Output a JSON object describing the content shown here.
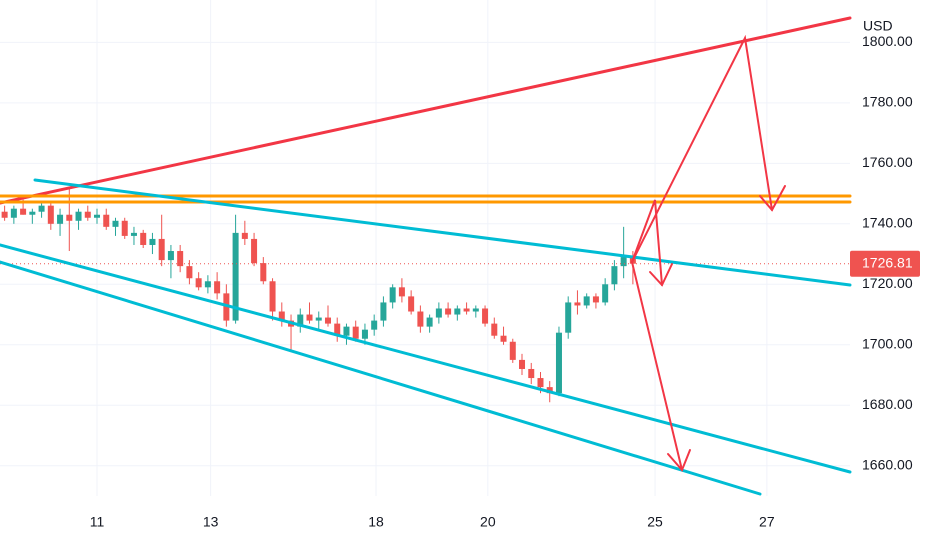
{
  "chart_data": {
    "type": "candlestick",
    "currency": "USD",
    "open": [
      1744,
      1742,
      1745,
      1743,
      1744,
      1746,
      1740,
      1743,
      1741,
      1744,
      1742,
      1743,
      1739,
      1741,
      1736,
      1737,
      1733,
      1735,
      1728,
      1731,
      1726,
      1722,
      1719,
      1721,
      1717,
      1708,
      1737,
      1735,
      1727,
      1721,
      1711,
      1708,
      1706,
      1710,
      1708,
      1709,
      1707,
      1703,
      1706,
      1702,
      1705,
      1708,
      1714,
      1719,
      1716,
      1711,
      1706,
      1709,
      1712,
      1710,
      1712,
      1711,
      1712,
      1707,
      1703,
      1701,
      1695,
      1692,
      1689,
      1686,
      1684,
      1704,
      1714,
      1713,
      1716,
      1714,
      1720,
      1726,
      1729
    ],
    "high": [
      1746,
      1746,
      1748,
      1745,
      1747,
      1747,
      1745,
      1752,
      1745,
      1746,
      1745,
      1745,
      1742,
      1742,
      1739,
      1738,
      1737,
      1743,
      1733,
      1733,
      1728,
      1724,
      1723,
      1724,
      1720,
      1743,
      1741,
      1737,
      1729,
      1722,
      1714,
      1710,
      1712,
      1714,
      1711,
      1713,
      1709,
      1707,
      1708,
      1707,
      1710,
      1716,
      1720,
      1722,
      1718,
      1713,
      1710,
      1714,
      1714,
      1713,
      1714,
      1713,
      1713,
      1709,
      1706,
      1702,
      1697,
      1694,
      1691,
      1688,
      1706,
      1716,
      1718,
      1717,
      1717,
      1722,
      1728,
      1739,
      1731
    ],
    "low": [
      1741,
      1740,
      1743,
      1740,
      1742,
      1738,
      1736,
      1731,
      1738,
      1741,
      1740,
      1738,
      1736,
      1735,
      1733,
      1732,
      1730,
      1726,
      1722,
      1724,
      1720,
      1718,
      1717,
      1715,
      1706,
      1707,
      1733,
      1726,
      1720,
      1708,
      1706,
      1698,
      1704,
      1707,
      1705,
      1706,
      1701,
      1700,
      1701,
      1700,
      1703,
      1706,
      1712,
      1714,
      1710,
      1704,
      1704,
      1707,
      1709,
      1708,
      1710,
      1709,
      1706,
      1702,
      1700,
      1694,
      1690,
      1687,
      1684,
      1681,
      1683,
      1702,
      1710,
      1712,
      1712,
      1713,
      1718,
      1722,
      1720
    ],
    "close": [
      1742,
      1745,
      1743,
      1744,
      1746,
      1740,
      1743,
      1741,
      1744,
      1742,
      1743,
      1739,
      1741,
      1736,
      1737,
      1733,
      1735,
      1728,
      1731,
      1726,
      1722,
      1719,
      1721,
      1717,
      1708,
      1737,
      1735,
      1727,
      1721,
      1711,
      1708,
      1706,
      1710,
      1708,
      1709,
      1707,
      1703,
      1706,
      1702,
      1705,
      1708,
      1714,
      1719,
      1716,
      1711,
      1706,
      1709,
      1712,
      1710,
      1712,
      1711,
      1712,
      1707,
      1703,
      1701,
      1695,
      1692,
      1689,
      1686,
      1684,
      1704,
      1714,
      1713,
      1716,
      1714,
      1720,
      1726,
      1729,
      1726.81
    ],
    "up_color": "#26a69a",
    "down_color": "#ef5350",
    "last_price": 1726.81,
    "xlim": [
      -0.5,
      91.5
    ],
    "xticks": [
      {
        "value": 10,
        "label": "11"
      },
      {
        "value": 22.3,
        "label": "13"
      },
      {
        "value": 40.2,
        "label": "18"
      },
      {
        "value": 52.3,
        "label": "20"
      },
      {
        "value": 70.4,
        "label": "25"
      },
      {
        "value": 82.5,
        "label": "27"
      }
    ],
    "ylim": [
      1650,
      1814
    ],
    "yticks": [
      {
        "value": 1660,
        "label": "1660.00"
      },
      {
        "value": 1680,
        "label": "1680.00"
      },
      {
        "value": 1700,
        "label": "1700.00"
      },
      {
        "value": 1720,
        "label": "1720.00"
      },
      {
        "value": 1740,
        "label": "1740.00"
      },
      {
        "value": 1760,
        "label": "1760.00"
      },
      {
        "value": 1780,
        "label": "1780.00"
      },
      {
        "value": 1800,
        "label": "1800.00"
      }
    ],
    "grid": true
  }
}
